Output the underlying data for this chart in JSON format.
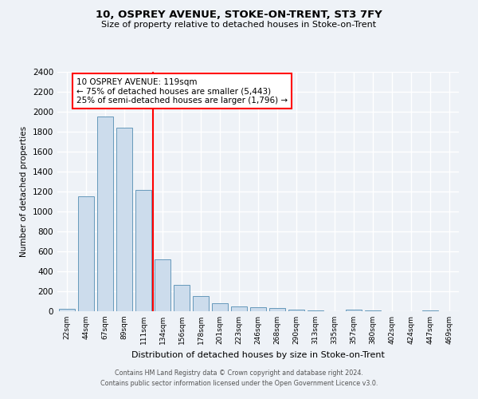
{
  "title": "10, OSPREY AVENUE, STOKE-ON-TRENT, ST3 7FY",
  "subtitle": "Size of property relative to detached houses in Stoke-on-Trent",
  "xlabel": "Distribution of detached houses by size in Stoke-on-Trent",
  "ylabel": "Number of detached properties",
  "categories": [
    "22sqm",
    "44sqm",
    "67sqm",
    "89sqm",
    "111sqm",
    "134sqm",
    "156sqm",
    "178sqm",
    "201sqm",
    "223sqm",
    "246sqm",
    "268sqm",
    "290sqm",
    "313sqm",
    "335sqm",
    "357sqm",
    "380sqm",
    "402sqm",
    "424sqm",
    "447sqm",
    "469sqm"
  ],
  "values": [
    25,
    1150,
    1950,
    1840,
    1220,
    520,
    265,
    150,
    80,
    50,
    40,
    35,
    15,
    10,
    0,
    18,
    5,
    0,
    0,
    5,
    2
  ],
  "bar_color": "#ccdcec",
  "bar_edge_color": "#6699bb",
  "vline_x": 4.5,
  "vline_color": "red",
  "annotation_text": "10 OSPREY AVENUE: 119sqm\n← 75% of detached houses are smaller (5,443)\n25% of semi-detached houses are larger (1,796) →",
  "annotation_box_color": "white",
  "annotation_box_edge": "red",
  "ylim": [
    0,
    2400
  ],
  "yticks": [
    0,
    200,
    400,
    600,
    800,
    1000,
    1200,
    1400,
    1600,
    1800,
    2000,
    2200,
    2400
  ],
  "background_color": "#eef2f7",
  "grid_color": "white",
  "footer1": "Contains HM Land Registry data © Crown copyright and database right 2024.",
  "footer2": "Contains public sector information licensed under the Open Government Licence v3.0."
}
